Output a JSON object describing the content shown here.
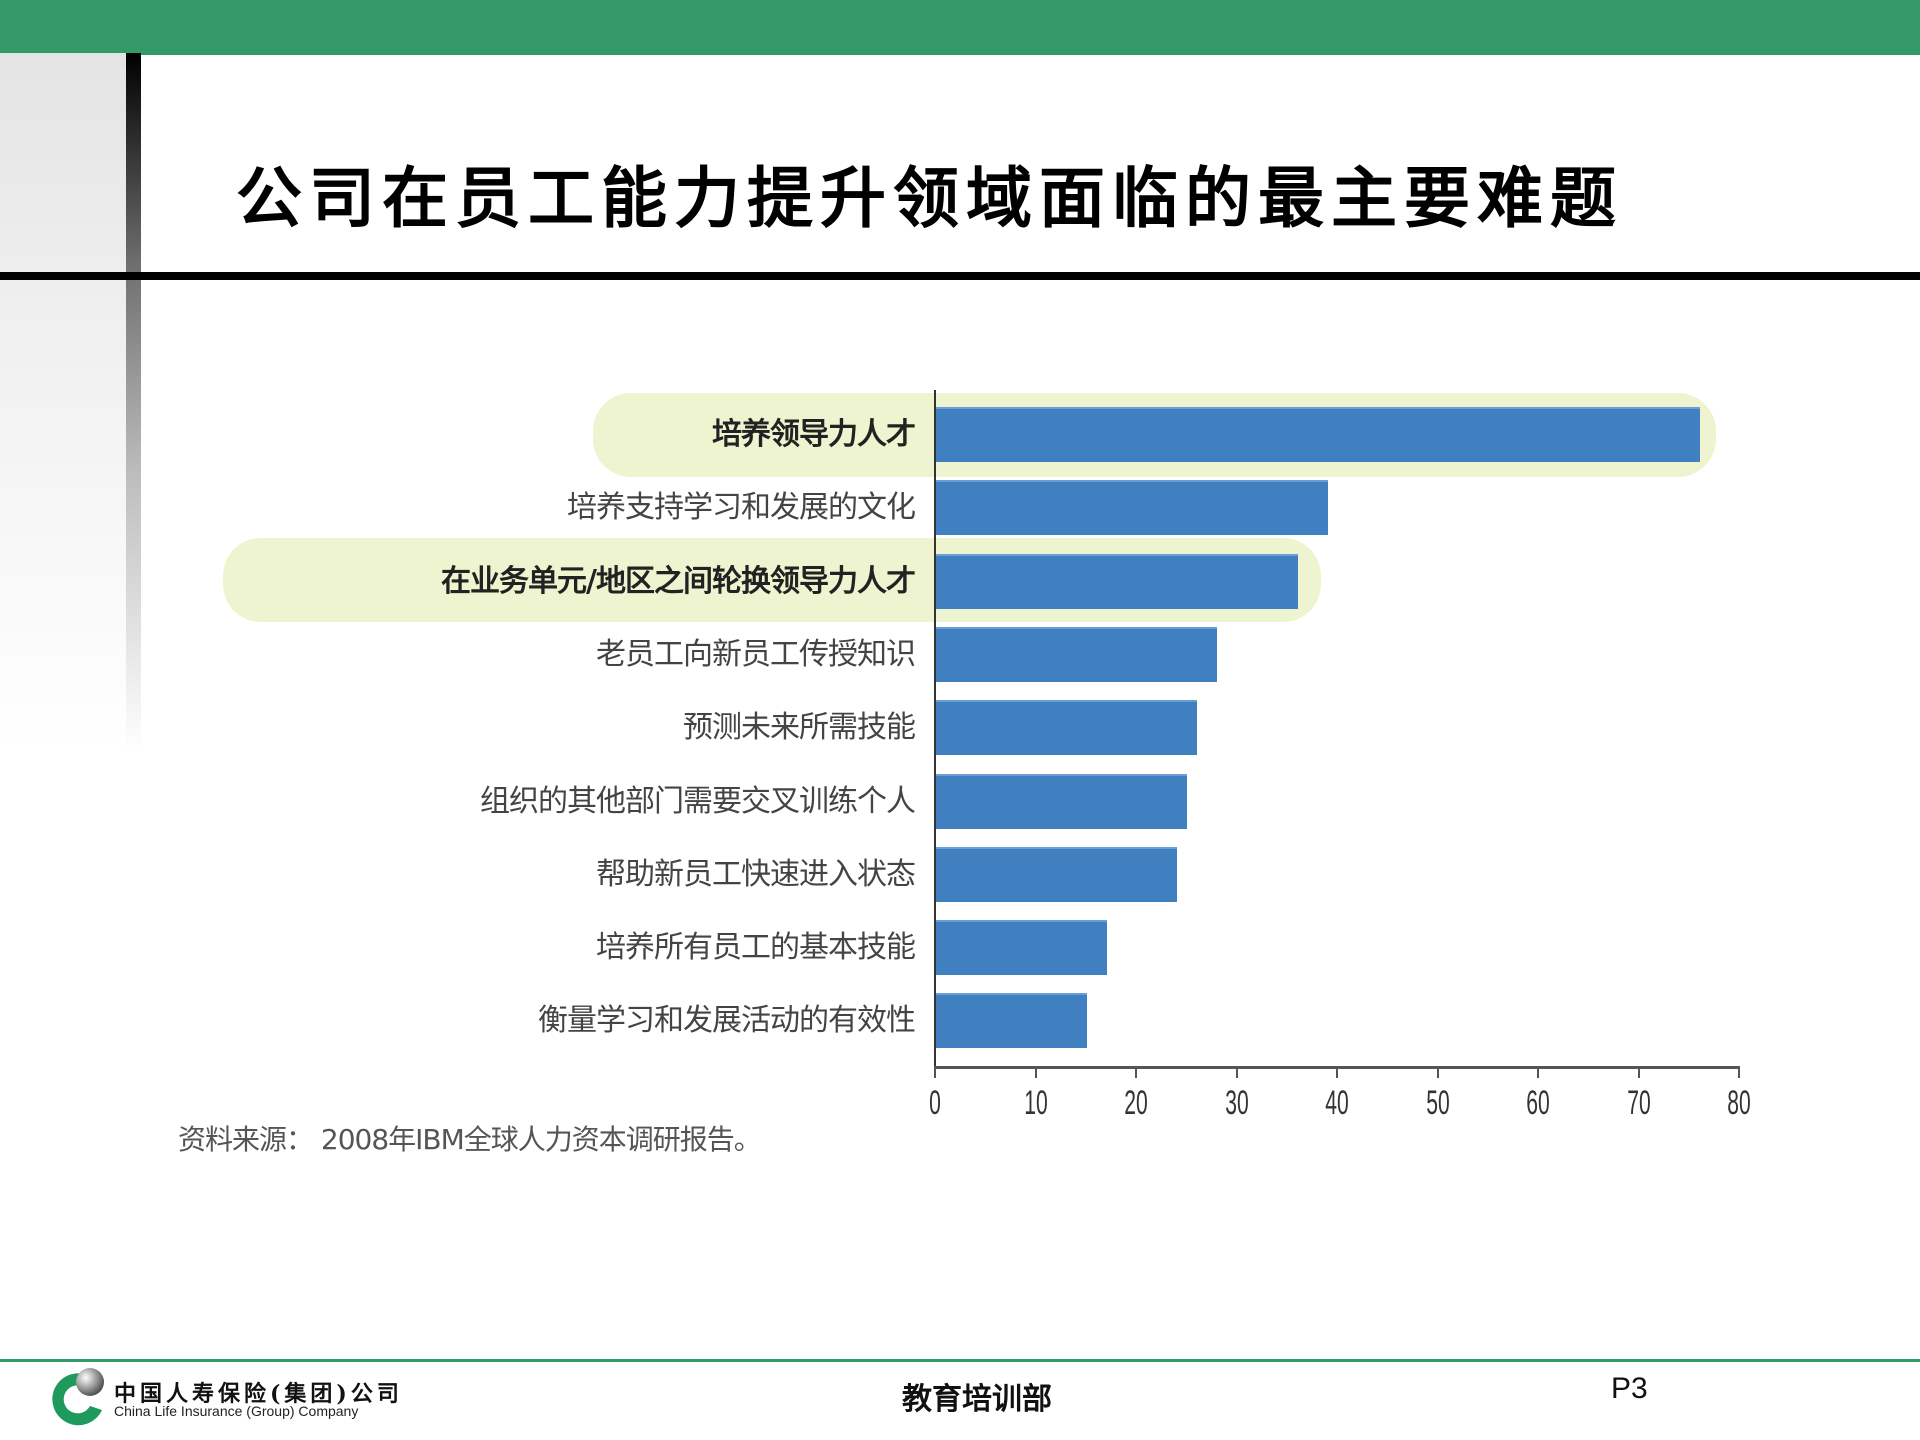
{
  "slide": {
    "title": "公司在员工能力提升领域面临的最主要难题",
    "colors": {
      "header_band": "#339966",
      "bar": "#4180c0",
      "highlight": "#eef4cf",
      "footer_rule": "#339966"
    }
  },
  "chart_data": {
    "type": "bar",
    "orientation": "horizontal",
    "title": "公司在员工能力提升领域面临的最主要难题",
    "xlabel": "",
    "ylabel": "",
    "xlim": [
      0,
      80
    ],
    "x_ticks": [
      "0",
      "10",
      "20",
      "30",
      "40",
      "50",
      "60",
      "70",
      "80"
    ],
    "grid": false,
    "legend": null,
    "categories": [
      "培养领导力人才",
      "培养支持学习和发展的文化",
      "在业务单元/地区之间轮换领导力人才",
      "老员工向新员工传授知识",
      "预测未来所需技能",
      "组织的其他部门需要交叉训练个人",
      "帮助新员工快速进入状态",
      "培养所有员工的基本技能",
      "衡量学习和发展活动的有效性"
    ],
    "values": [
      76,
      39,
      36,
      28,
      26,
      25,
      24,
      17,
      15
    ],
    "highlighted_categories": [
      "培养领导力人才",
      "在业务单元/地区之间轮换领导力人才"
    ],
    "annotations": [
      "资料来源： 2008年IBM全球人力资本调研报告。"
    ]
  },
  "source_note": "资料来源：  2008年IBM全球人力资本调研报告。",
  "footer": {
    "company_cn": "中国人寿保险(集团)公司",
    "company_en": "China Life Insurance (Group) Company",
    "department": "教育培训部",
    "page": "P3"
  }
}
